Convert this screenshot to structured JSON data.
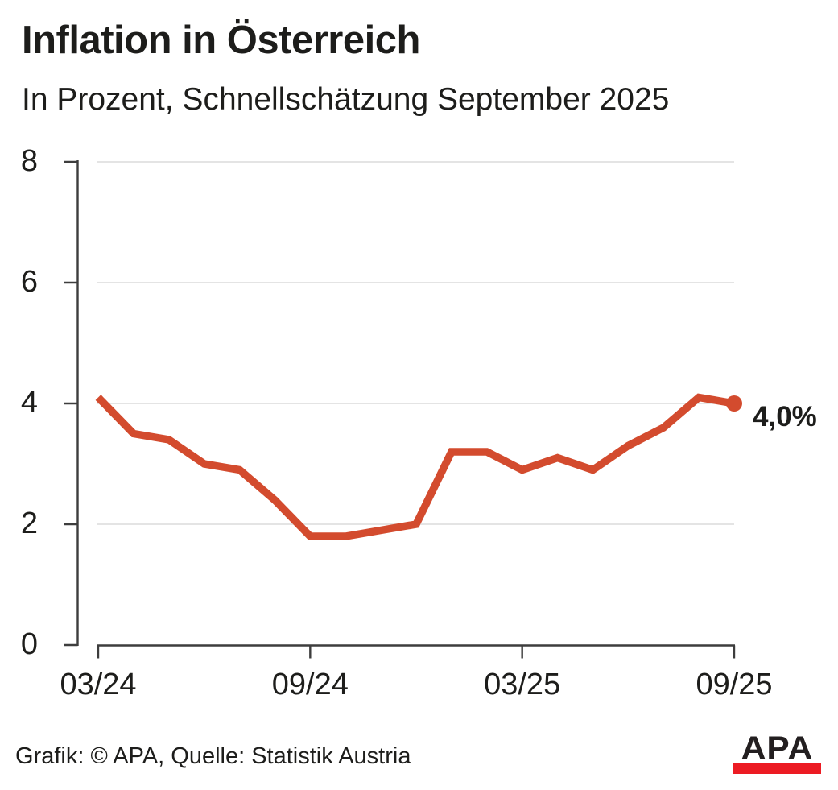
{
  "header": {
    "title": "Inflation in Österreich",
    "subtitle": "In Prozent, Schnellschätzung September 2025"
  },
  "chart_data": {
    "type": "line",
    "x": [
      "03/24",
      "04/24",
      "05/24",
      "06/24",
      "07/24",
      "08/24",
      "09/24",
      "10/24",
      "11/24",
      "12/24",
      "01/25",
      "02/25",
      "03/25",
      "04/25",
      "05/25",
      "06/25",
      "07/25",
      "08/25",
      "09/25"
    ],
    "values": [
      4.1,
      3.5,
      3.4,
      3.0,
      2.9,
      2.4,
      1.8,
      1.8,
      1.9,
      2.0,
      3.2,
      3.2,
      2.9,
      3.1,
      2.9,
      3.3,
      3.6,
      4.1,
      4.0
    ],
    "title": "Inflation in Österreich",
    "xlabel": "",
    "ylabel": "",
    "ylim": [
      0,
      8
    ],
    "yticks": [
      0,
      2,
      4,
      6,
      8
    ],
    "xtick_labels": [
      "03/24",
      "09/24",
      "03/25",
      "09/25"
    ],
    "grid": "horizontal",
    "legend": "none",
    "end_label": "4,0%",
    "line_color": "#d34b2e",
    "axis_color": "#3d3d3d",
    "grid_color": "#dcdcdc"
  },
  "footer": {
    "credit": "Grafik: © APA, Quelle: Statistik Austria"
  },
  "logo": {
    "text": "APA",
    "bar_color": "#ec1b23"
  }
}
